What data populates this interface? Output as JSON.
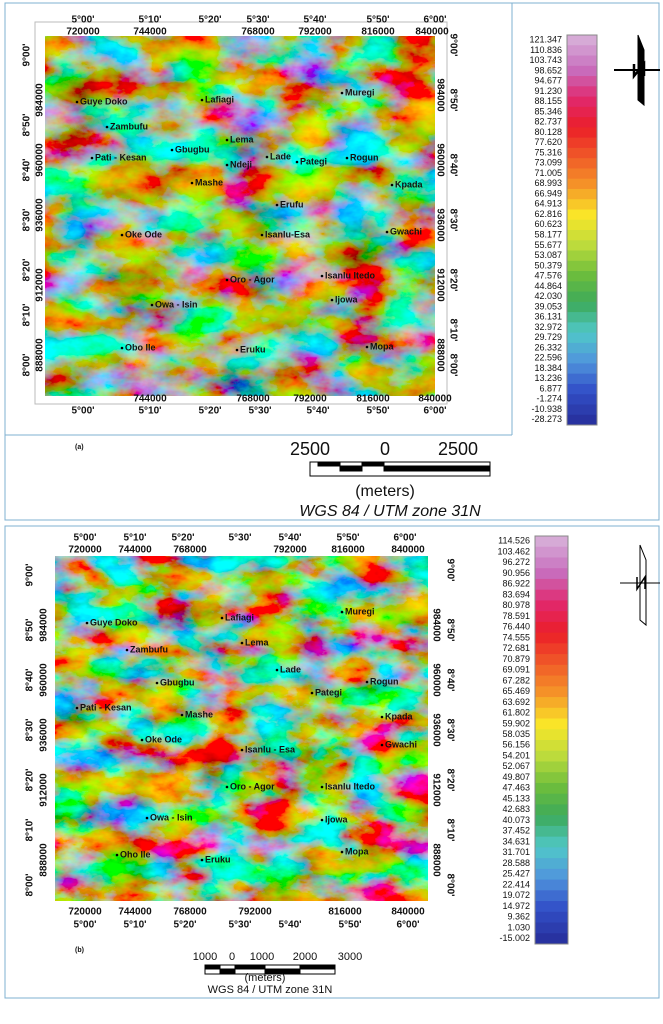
{
  "panels": [
    {
      "label": "(a)",
      "lon_top": [
        "5°00'",
        "5°10'",
        "5°20'",
        "5°30'",
        "5°40'",
        "5°50'",
        "6°00'"
      ],
      "utm_top": [
        "720000",
        "744000",
        "768000",
        "792000",
        "816000",
        "840000"
      ],
      "utm_bottom": [
        "744000",
        "768000",
        "792000",
        "816000",
        "840000"
      ],
      "lon_bottom": [
        "5°00'",
        "5°10'",
        "5°20'",
        "5°30'",
        "5°40'",
        "5°50'",
        "6°00'"
      ],
      "lat_left": [
        "9°00'",
        "8°50'",
        "8°40'",
        "8°30'",
        "8°20'",
        "8°10'",
        "8°00'"
      ],
      "utm_left": [
        "984000",
        "960000",
        "936000",
        "912000",
        "888000"
      ],
      "utm_right": [
        "984000",
        "960000",
        "936000",
        "912000",
        "888000"
      ],
      "lat_right": [
        "9°00'",
        "8°50'",
        "8°40'",
        "8°30'",
        "8°20'",
        "8°10'",
        "8°00'"
      ],
      "places": [
        "Guye Doko",
        "Lafiagi",
        "Muregi",
        "Zambufu",
        "Lema",
        "Pati - Kesan",
        "Gbugbu",
        "Ndeji",
        "Lade",
        "Pategi",
        "Rogun",
        "Mashe",
        "Kpada",
        "Erufu",
        "Oke Ode",
        "Isanlu-Esa",
        "Gwachi",
        "Oro - Agor",
        "Isanlu Itedo",
        "Ijowa",
        "Owa - Isin",
        "Obo Ile",
        "Eruku",
        "Mopa"
      ],
      "legend": [
        "121.347",
        "110.836",
        "103.743",
        "98.652",
        "94.677",
        "91.230",
        "88.155",
        "85.346",
        "82.737",
        "80.128",
        "77.620",
        "75.316",
        "73.099",
        "71.005",
        "68.993",
        "66.949",
        "64.913",
        "62.816",
        "60.623",
        "58.177",
        "55.677",
        "53.087",
        "50.379",
        "47.576",
        "44.864",
        "42.030",
        "39.053",
        "36.131",
        "32.972",
        "29.729",
        "26.332",
        "22.596",
        "18.384",
        "13.236",
        "6.877",
        "-1.274",
        "-10.938",
        "-28.273"
      ],
      "scale_labels": [
        "2500",
        "0",
        "2500"
      ],
      "scale_unit": "(meters)",
      "projection": "WGS 84 / UTM zone 31N"
    },
    {
      "label": "(b)",
      "lon_top": [
        "5°00'",
        "5°10'",
        "5°20'",
        "5°30'",
        "5°40'",
        "5°50'",
        "6°00'"
      ],
      "utm_top": [
        "720000",
        "744000",
        "768000",
        "792000",
        "816000",
        "840000"
      ],
      "utm_bottom": [
        "720000",
        "744000",
        "768000",
        "792000",
        "816000",
        "840000"
      ],
      "lon_bottom": [
        "5°00'",
        "5°10'",
        "5°20'",
        "5°30'",
        "5°40'",
        "5°50'",
        "6°00'"
      ],
      "lat_left": [
        "9°00'",
        "8°50'",
        "8°40'",
        "8°30'",
        "8°20'",
        "8°10'",
        "8°00'"
      ],
      "utm_left": [
        "984000",
        "960000",
        "936000",
        "912000",
        "888000"
      ],
      "utm_right": [
        "984000",
        "960000",
        "936000",
        "912000",
        "888000"
      ],
      "lat_right": [
        "9°00'",
        "8°50'",
        "8°40'",
        "8°30'",
        "8°20'",
        "8°10'",
        "8°00'"
      ],
      "places": [
        "Guye Doko",
        "Lafiagi",
        "Muregi",
        "Zambufu",
        "Lema",
        "Gbugbu",
        "Lade",
        "Pategi",
        "Rogun",
        "Pati - Kesan",
        "Mashe",
        "Kpada",
        "Oke Ode",
        "Gwachi",
        "Isanlu - Esa",
        "Oro - Agor",
        "Isanlu Itedo",
        "Owa - Isin",
        "Ijowa",
        "Oho Ile",
        "Eruku",
        "Mopa"
      ],
      "legend": [
        "114.526",
        "103.462",
        "96.272",
        "90.956",
        "86.922",
        "83.694",
        "80.978",
        "78.591",
        "76.440",
        "74.555",
        "72.681",
        "70.879",
        "69.091",
        "67.282",
        "65.469",
        "63.692",
        "61.802",
        "59.902",
        "58.035",
        "56.156",
        "54.201",
        "52.067",
        "49.807",
        "47.463",
        "45.133",
        "42.683",
        "40.073",
        "37.452",
        "34.631",
        "31.701",
        "28.588",
        "25.427",
        "22.414",
        "19.072",
        "14.972",
        "9.362",
        "1.030",
        "-15.002"
      ],
      "scale_labels": [
        "1000",
        "0",
        "1000",
        "2000",
        "3000"
      ],
      "scale_unit": "(meters)",
      "projection": "WGS 84 / UTM zone 31N"
    }
  ]
}
